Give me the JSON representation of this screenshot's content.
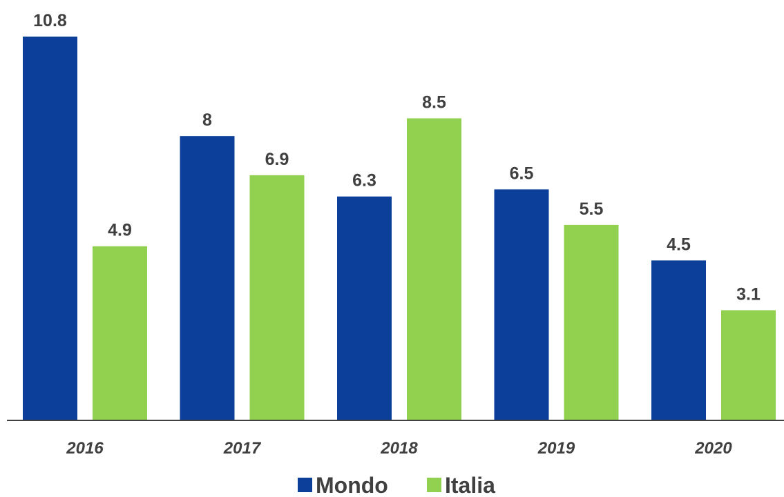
{
  "chart_data": {
    "type": "bar",
    "title": "",
    "xlabel": "",
    "ylabel": "",
    "categories": [
      "2016",
      "2017",
      "2018",
      "2019",
      "2020"
    ],
    "series": [
      {
        "name": "Mondo",
        "values": [
          10.8,
          8,
          6.3,
          6.5,
          4.5
        ],
        "color": "#0b3f99"
      },
      {
        "name": "Italia",
        "values": [
          4.9,
          6.9,
          8.5,
          5.5,
          3.1
        ],
        "color": "#92d050"
      }
    ],
    "ylim": [
      0,
      10.8
    ],
    "grid": false,
    "legend_position": "bottom",
    "data_labels": true
  }
}
